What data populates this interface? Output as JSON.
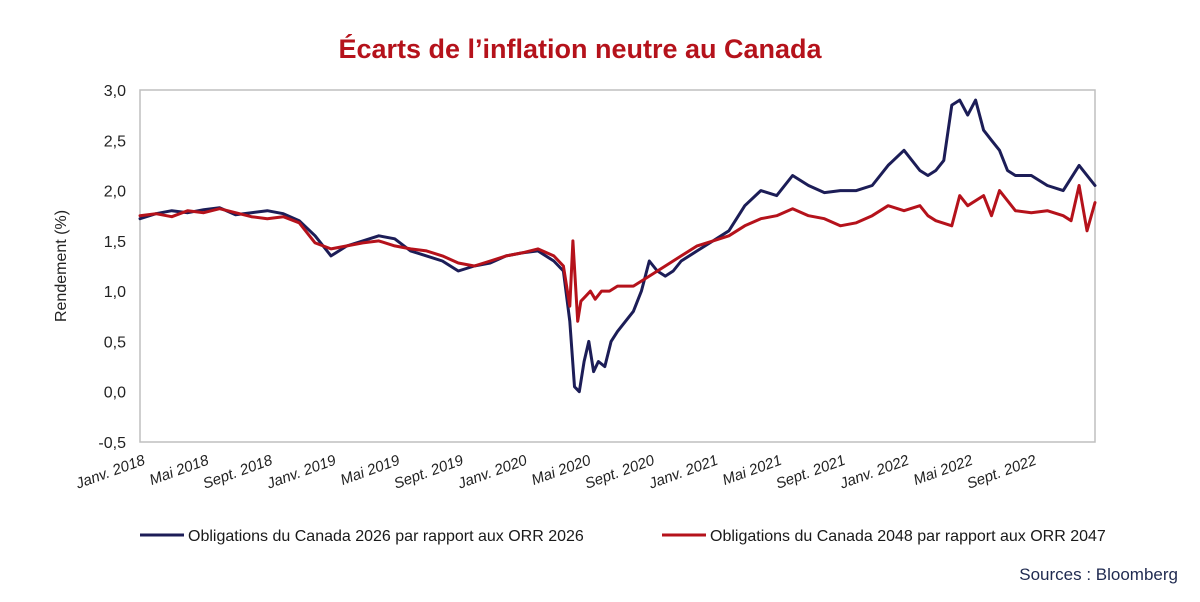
{
  "colors": {
    "title": "#b5121b",
    "series_navy": "#1c1d57",
    "series_red": "#b5121b",
    "axis": "#bfbfbf",
    "source": "#1f2a50"
  },
  "chart_data": {
    "type": "line",
    "title": "Écarts de l’inflation neutre au Canada",
    "xlabel": "",
    "ylabel": "Rendement (%)",
    "ylim": [
      -0.5,
      3.0
    ],
    "yticks": [
      3.0,
      2.5,
      2.0,
      1.5,
      1.0,
      0.5,
      0.0,
      -0.5
    ],
    "ytick_labels": [
      "3,0",
      "2,5",
      "2,0",
      "1,5",
      "1,0",
      "0,5",
      "0,0",
      "-0,5"
    ],
    "x_range": [
      0,
      60
    ],
    "x_unit": "months since Jan 2018",
    "xticks": [
      0,
      4,
      8,
      12,
      16,
      20,
      24,
      28,
      32,
      36,
      40,
      44,
      48,
      52,
      56
    ],
    "xtick_labels": [
      "Janv. 2018",
      "Mai 2018",
      "Sept. 2018",
      "Janv. 2019",
      "Mai 2019",
      "Sept. 2019",
      "Janv. 2020",
      "Mai 2020",
      "Sept. 2020",
      "Janv. 2021",
      "Mai 2021",
      "Sept. 2021",
      "Janv. 2022",
      "Mai 2022",
      "Sept. 2022"
    ],
    "grid": false,
    "legend_position": "bottom",
    "series": [
      {
        "name": "Obligations du Canada 2026 par rapport aux ORR 2026",
        "color": "#1c1d57",
        "x": [
          0,
          1,
          2,
          3,
          4,
          5,
          6,
          7,
          8,
          9,
          10,
          11,
          12,
          13,
          14,
          15,
          16,
          17,
          18,
          19,
          20,
          21,
          22,
          23,
          24,
          25,
          26,
          26.6,
          27,
          27.3,
          27.6,
          27.9,
          28.2,
          28.5,
          28.8,
          29.2,
          29.6,
          30,
          30.5,
          31,
          31.5,
          32,
          32.5,
          33,
          33.5,
          34,
          35,
          36,
          37,
          38,
          39,
          40,
          41,
          42,
          43,
          44,
          45,
          46,
          47,
          48,
          49,
          49.5,
          50,
          50.5,
          51,
          51.5,
          52,
          52.5,
          53,
          53.5,
          54,
          54.5,
          55,
          56,
          57,
          58,
          59,
          60
        ],
        "values": [
          1.72,
          1.77,
          1.8,
          1.78,
          1.81,
          1.83,
          1.76,
          1.78,
          1.8,
          1.77,
          1.7,
          1.55,
          1.35,
          1.45,
          1.5,
          1.55,
          1.52,
          1.4,
          1.35,
          1.3,
          1.2,
          1.25,
          1.28,
          1.35,
          1.38,
          1.4,
          1.3,
          1.2,
          0.7,
          0.05,
          0.0,
          0.3,
          0.5,
          0.2,
          0.3,
          0.25,
          0.5,
          0.6,
          0.7,
          0.8,
          1.0,
          1.3,
          1.2,
          1.15,
          1.2,
          1.3,
          1.4,
          1.5,
          1.6,
          1.85,
          2.0,
          1.95,
          2.15,
          2.05,
          1.98,
          2.0,
          2.0,
          2.05,
          2.25,
          2.4,
          2.2,
          2.15,
          2.2,
          2.3,
          2.85,
          2.9,
          2.75,
          2.9,
          2.6,
          2.5,
          2.4,
          2.2,
          2.15,
          2.15,
          2.05,
          2.0,
          2.25,
          2.05
        ]
      },
      {
        "name": "Obligations du Canada 2048 par rapport aux ORR 2047",
        "color": "#b5121b",
        "x": [
          0,
          1,
          2,
          3,
          4,
          5,
          6,
          7,
          8,
          9,
          10,
          11,
          12,
          13,
          14,
          15,
          16,
          17,
          18,
          19,
          20,
          21,
          22,
          23,
          24,
          25,
          26,
          26.6,
          27,
          27.2,
          27.5,
          27.7,
          28,
          28.3,
          28.6,
          29,
          29.5,
          30,
          31,
          32,
          33,
          34,
          35,
          36,
          37,
          38,
          39,
          40,
          41,
          42,
          43,
          44,
          45,
          46,
          47,
          48,
          49,
          49.5,
          50,
          51,
          51.5,
          52,
          53,
          53.5,
          54,
          55,
          56,
          57,
          58,
          58.5,
          59,
          59.5,
          60
        ],
        "values": [
          1.75,
          1.77,
          1.74,
          1.8,
          1.78,
          1.82,
          1.78,
          1.74,
          1.72,
          1.74,
          1.68,
          1.48,
          1.42,
          1.45,
          1.48,
          1.5,
          1.45,
          1.42,
          1.4,
          1.35,
          1.28,
          1.25,
          1.3,
          1.35,
          1.38,
          1.42,
          1.35,
          1.25,
          0.85,
          1.5,
          0.7,
          0.9,
          0.95,
          1.0,
          0.92,
          1.0,
          1.0,
          1.05,
          1.05,
          1.15,
          1.25,
          1.35,
          1.45,
          1.5,
          1.55,
          1.65,
          1.72,
          1.75,
          1.82,
          1.75,
          1.72,
          1.65,
          1.68,
          1.75,
          1.85,
          1.8,
          1.85,
          1.75,
          1.7,
          1.65,
          1.95,
          1.85,
          1.95,
          1.75,
          2.0,
          1.8,
          1.78,
          1.8,
          1.75,
          1.7,
          2.05,
          1.6,
          1.88
        ]
      }
    ],
    "source": "Sources : Bloomberg"
  }
}
